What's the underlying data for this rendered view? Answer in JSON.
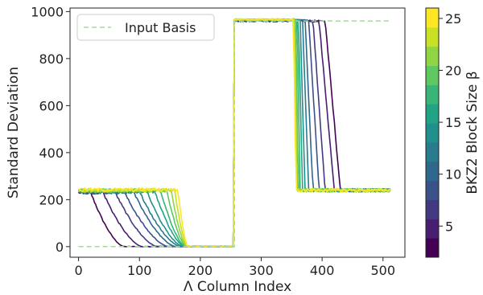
{
  "chart_data": {
    "type": "line",
    "xlabel": "Λ Column Index",
    "ylabel": "Standard Deviation",
    "xlim": [
      -14,
      536
    ],
    "ylim": [
      -45,
      1015
    ],
    "x_ticks": [
      0,
      100,
      200,
      300,
      400,
      500
    ],
    "y_ticks": [
      0,
      200,
      400,
      600,
      800,
      1000
    ],
    "grid": false,
    "legend": {
      "position": "top-left",
      "entries": [
        "Input Basis"
      ]
    },
    "colorbar": {
      "label": "BKZ2 Block Size β",
      "range": [
        2,
        26
      ],
      "ticks": [
        5,
        10,
        15,
        20,
        25
      ],
      "colormap": "viridis"
    },
    "input_basis": {
      "name": "Input Basis",
      "color": "#a8d8a0",
      "style": "dashed",
      "points": [
        [
          0,
          0
        ],
        [
          256,
          0
        ],
        [
          256,
          960
        ],
        [
          512,
          960
        ]
      ]
    },
    "block_sizes": [
      2,
      4,
      6,
      8,
      10,
      12,
      14,
      16,
      18,
      20,
      22,
      24,
      26
    ],
    "series_shape": {
      "description": "each block size beta: plateau ~232 (cols 0 to start), decay to 0 by col 175-180, 0 until 256, ~960 plateau 256 to drop point, drop to ~240 plateau until 512",
      "start_decay": [
        20,
        40,
        60,
        75,
        90,
        100,
        112,
        125,
        135,
        145,
        152,
        158,
        163
      ],
      "zero_at": [
        75,
        105,
        130,
        148,
        160,
        168,
        172,
        175,
        176,
        177,
        178,
        179,
        180
      ],
      "drop_start": [
        405,
        395,
        385,
        378,
        372,
        368,
        364,
        361,
        359,
        357,
        355,
        354,
        353
      ],
      "drop_end": [
        430,
        420,
        405,
        395,
        385,
        378,
        372,
        368,
        364,
        361,
        359,
        358,
        357
      ],
      "plateau_low": [
        230,
        232,
        232,
        232,
        233,
        234,
        235,
        236,
        237,
        238,
        239,
        240,
        242
      ],
      "plateau_high": [
        960,
        961,
        962,
        962,
        963,
        963,
        964,
        964,
        965,
        965,
        965,
        966,
        966
      ]
    }
  }
}
